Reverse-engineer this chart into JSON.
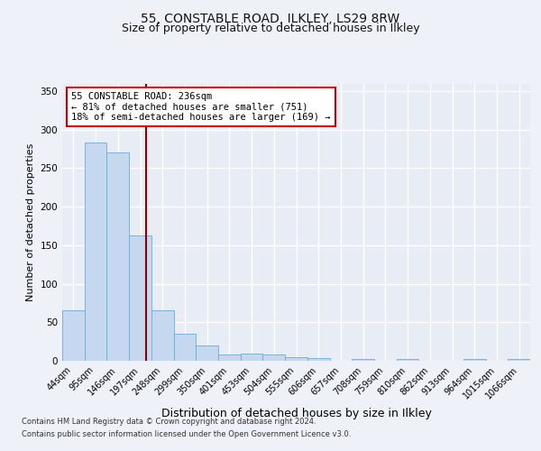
{
  "title": "55, CONSTABLE ROAD, ILKLEY, LS29 8RW",
  "subtitle": "Size of property relative to detached houses in Ilkley",
  "xlabel": "Distribution of detached houses by size in Ilkley",
  "ylabel": "Number of detached properties",
  "footer_line1": "Contains HM Land Registry data © Crown copyright and database right 2024.",
  "footer_line2": "Contains public sector information licensed under the Open Government Licence v3.0.",
  "categories": [
    "44sqm",
    "95sqm",
    "146sqm",
    "197sqm",
    "248sqm",
    "299sqm",
    "350sqm",
    "401sqm",
    "453sqm",
    "504sqm",
    "555sqm",
    "606sqm",
    "657sqm",
    "708sqm",
    "759sqm",
    "810sqm",
    "862sqm",
    "913sqm",
    "964sqm",
    "1015sqm",
    "1066sqm"
  ],
  "values": [
    65,
    283,
    270,
    163,
    65,
    35,
    20,
    8,
    9,
    8,
    5,
    4,
    0,
    2,
    0,
    2,
    0,
    0,
    2,
    0,
    2
  ],
  "bar_color": "#c5d8f0",
  "bar_edge_color": "#6aaed6",
  "vline_color": "#8b0000",
  "annotation_text": "55 CONSTABLE ROAD: 236sqm\n← 81% of detached houses are smaller (751)\n18% of semi-detached houses are larger (169) →",
  "annotation_box_color": "#ffffff",
  "annotation_box_edge": "#cc0000",
  "ylim": [
    0,
    360
  ],
  "yticks": [
    0,
    50,
    100,
    150,
    200,
    250,
    300,
    350
  ],
  "bg_color": "#eef2f8",
  "plot_bg": "#e8edf5",
  "grid_color": "#ffffff",
  "title_fontsize": 10,
  "subtitle_fontsize": 9,
  "ylabel_fontsize": 8,
  "xlabel_fontsize": 9,
  "tick_fontsize": 7,
  "footer_fontsize": 6,
  "ann_fontsize": 7.5
}
